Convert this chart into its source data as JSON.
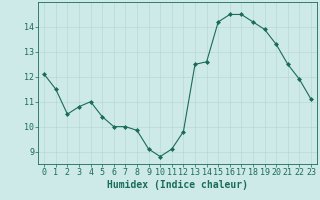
{
  "x": [
    0,
    1,
    2,
    3,
    4,
    5,
    6,
    7,
    8,
    9,
    10,
    11,
    12,
    13,
    14,
    15,
    16,
    17,
    18,
    19,
    20,
    21,
    22,
    23
  ],
  "y": [
    12.1,
    11.5,
    10.5,
    10.8,
    11.0,
    10.4,
    10.0,
    10.0,
    9.85,
    9.1,
    8.8,
    9.1,
    9.8,
    12.5,
    12.6,
    14.2,
    14.5,
    14.5,
    14.2,
    13.9,
    13.3,
    12.5,
    11.9,
    11.1
  ],
  "line_color": "#1a6b5a",
  "marker": "D",
  "marker_size": 2,
  "bg_color": "#ceeae8",
  "grid_color": "#b8d8d6",
  "xlabel": "Humidex (Indice chaleur)",
  "ylabel": "",
  "xlim": [
    -0.5,
    23.5
  ],
  "ylim": [
    8.5,
    15.0
  ],
  "yticks": [
    9,
    10,
    11,
    12,
    13,
    14
  ],
  "xticks": [
    0,
    1,
    2,
    3,
    4,
    5,
    6,
    7,
    8,
    9,
    10,
    11,
    12,
    13,
    14,
    15,
    16,
    17,
    18,
    19,
    20,
    21,
    22,
    23
  ],
  "tick_color": "#1a6b5a",
  "tick_label_color": "#1a6b5a",
  "xlabel_color": "#1a6b5a",
  "spine_color": "#1a6b5a",
  "xlabel_fontsize": 7,
  "tick_fontsize": 6
}
